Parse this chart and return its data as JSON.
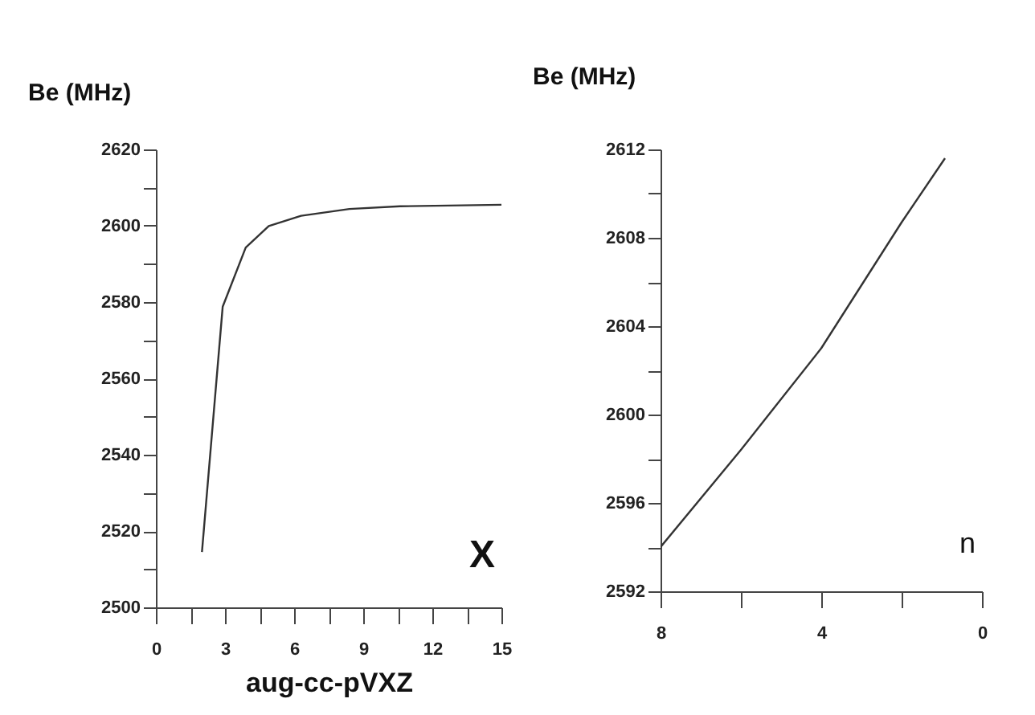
{
  "chart_data": [
    {
      "type": "line",
      "xlabel": "aug-cc-pVXZ",
      "ylabel": "Be (MHz)",
      "annotations": [
        "X"
      ],
      "marker": "none",
      "grid": false,
      "series": [
        {
          "color": "#333333",
          "x": [
            2,
            2.9,
            3.9,
            4.9,
            6.3,
            8.4,
            10.6,
            15
          ],
          "values": [
            2514.5,
            2578.8,
            2594.3,
            2599.9,
            2602.6,
            2604.4,
            2605.1,
            2605.5
          ]
        }
      ],
      "xlim": [
        0,
        15
      ],
      "xticks": [
        0,
        {
          "value": 1.5,
          "label": null
        },
        3,
        {
          "value": 4.5,
          "label": null
        },
        6,
        {
          "value": 7.5,
          "label": null
        },
        9,
        {
          "value": 10.5,
          "label": null
        },
        12,
        {
          "value": 13.5,
          "label": null
        },
        15
      ],
      "ylim": [
        2500,
        2620
      ],
      "yticks": [
        2500,
        {
          "value": 2510,
          "label": null
        },
        2520,
        {
          "value": 2530,
          "label": null
        },
        2540,
        {
          "value": 2550,
          "label": null
        },
        2560,
        {
          "value": 2570,
          "label": null
        },
        2580,
        {
          "value": 2590,
          "label": null
        },
        2600,
        {
          "value": 2610,
          "label": null
        },
        2620
      ]
    },
    {
      "type": "line",
      "ylabel": "Be (MHz)",
      "annotations": [
        "n"
      ],
      "marker": "none",
      "grid": false,
      "series": [
        {
          "color": "#333333",
          "x": [
            8,
            6,
            4,
            2,
            0.92
          ],
          "values": [
            2594.0,
            2598.4,
            2603.0,
            2608.7,
            2611.6
          ]
        }
      ],
      "xlim": [
        8,
        0
      ],
      "xticks": [
        8,
        {
          "value": 6,
          "label": null
        },
        4,
        {
          "value": 2,
          "label": null
        },
        0
      ],
      "ylim": [
        2592,
        2612
      ],
      "yticks": [
        2592,
        {
          "value": 2594,
          "label": null
        },
        2596,
        {
          "value": 2598,
          "label": null
        },
        2600,
        {
          "value": 2602,
          "label": null
        },
        2604,
        {
          "value": 2606,
          "label": null
        },
        2608,
        {
          "value": 2610,
          "label": null
        },
        2612
      ]
    }
  ]
}
